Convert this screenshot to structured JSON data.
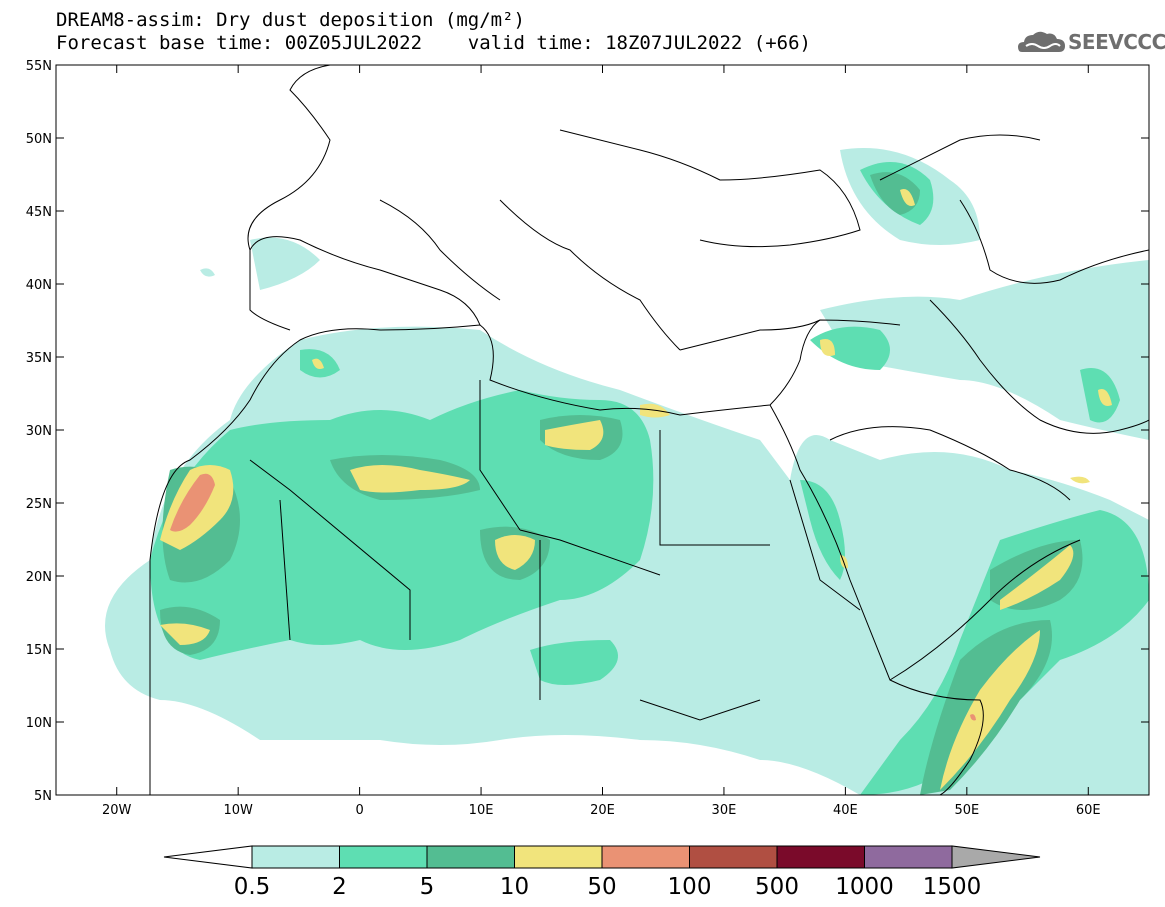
{
  "title": {
    "line1": "DREAM8-assim: Dry dust deposition (mg/m²)",
    "line2": "Forecast base time: 00Z05JUL2022    valid time: 18Z07JUL2022 (+66)"
  },
  "logo": {
    "text": "SEEVCCC",
    "icon": "cloud-icon"
  },
  "map": {
    "region": "North Africa, Europe and Middle East",
    "lon_range": [
      -25,
      65
    ],
    "lat_range": [
      5,
      55
    ],
    "lat_labels": [
      "55N",
      "50N",
      "45N",
      "40N",
      "35N",
      "30N",
      "25N",
      "20N",
      "15N",
      "10N",
      "5N"
    ],
    "lon_labels": [
      "20W",
      "10W",
      "0",
      "10E",
      "20E",
      "30E",
      "40E",
      "50E",
      "60E"
    ]
  },
  "colorbar": {
    "labels": [
      "0.5",
      "2",
      "5",
      "10",
      "50",
      "100",
      "500",
      "1000",
      "1500"
    ],
    "colors": [
      "#b9ece4",
      "#5edeb2",
      "#53bd92",
      "#f1e47c",
      "#ea9274",
      "#b04f42",
      "#7a0a2a",
      "#8f6a9e"
    ],
    "under_color": "#ffffff",
    "over_color": "#a9a9a9"
  },
  "legend_colors": {
    "c05": "#b9ece4",
    "c2": "#5edeb2",
    "c5": "#53bd92",
    "c10": "#f1e47c",
    "c50": "#ea9274"
  }
}
